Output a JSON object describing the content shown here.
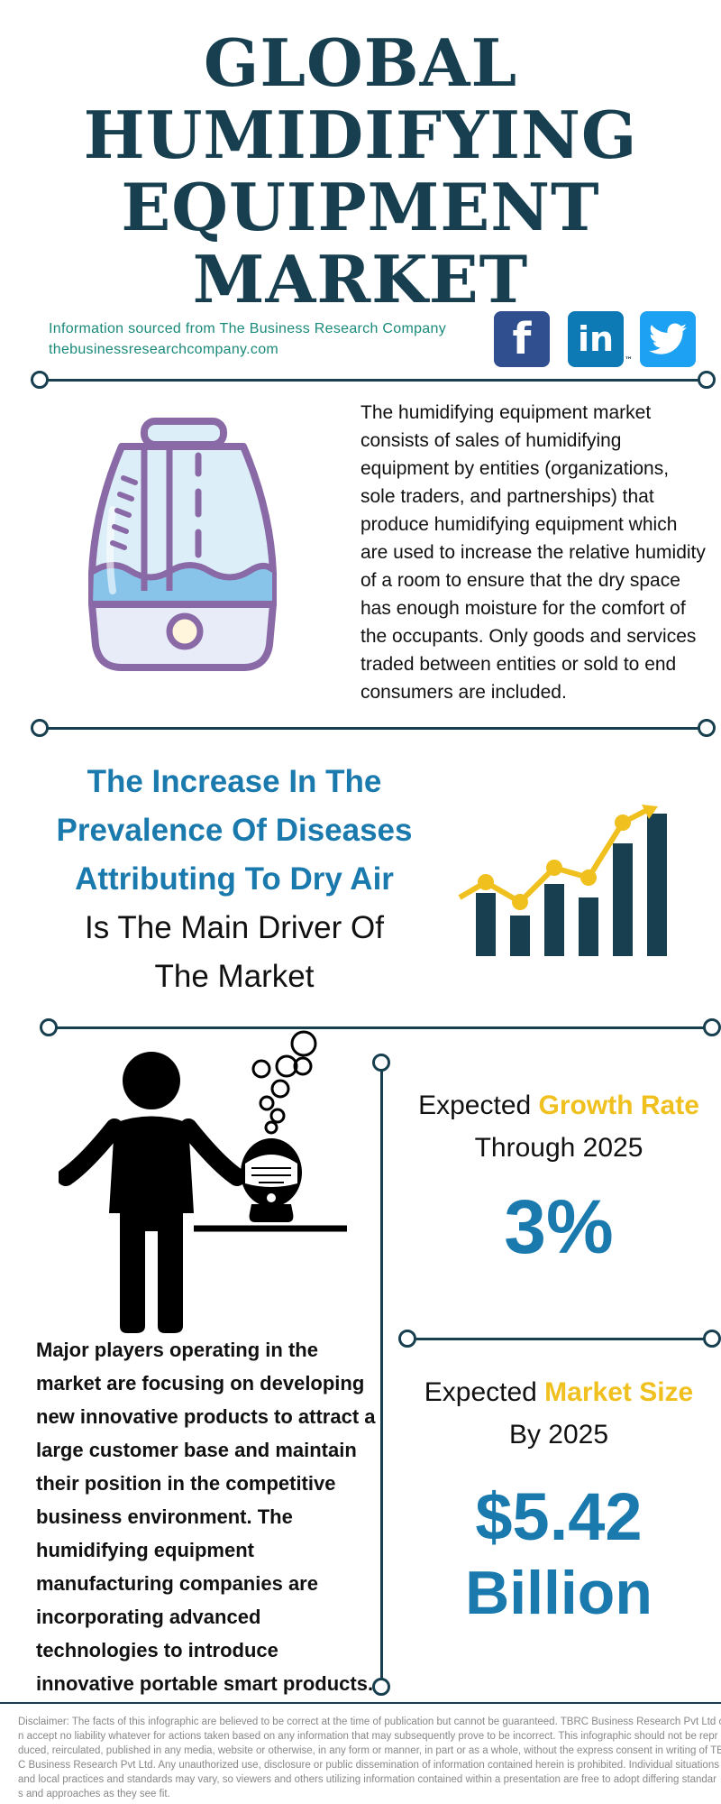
{
  "title": {
    "lines": [
      "GLOBAL",
      "HUMIDIFYING",
      "EQUIPMENT",
      "MARKET"
    ]
  },
  "source": {
    "line1": "Information sourced from The Business Research Company",
    "line2": "thebusinessresearchcompany.com"
  },
  "social": {
    "facebook": "f",
    "linkedin": "in",
    "linkedin_tm": "™"
  },
  "description": "The humidifying equipment market consists of sales of humidifying equipment by entities (organizations, sole traders, and partnerships) that produce humidifying equipment which are used to increase the relative humidity of a room to ensure that the dry space has enough moisture for the comfort of the occupants. Only goods and services traded between entities or sold to end consumers are included.",
  "driver": {
    "highlight_lines": [
      "The Increase In The",
      "Prevalence Of Diseases",
      "Attributing To Dry Air"
    ],
    "rest_lines": [
      "Is The Main Driver Of",
      "The Market"
    ]
  },
  "growth": {
    "label_prefix": "Expected ",
    "label_highlight": "Growth Rate",
    "label_suffix": "Through 2025",
    "value": "3%"
  },
  "market_size": {
    "label_prefix": "Expected ",
    "label_highlight": "Market Size",
    "label_suffix": "By 2025",
    "value_line1": "$5.42",
    "value_line2": "Billion"
  },
  "players": "Major players operating in the market are focusing on developing new innovative products to attract a large customer base and maintain their position in the competitive business environment. The humidifying equipment manufacturing companies are incorporating advanced technologies to introduce innovative portable smart products.",
  "disclaimer": [
    "Disclaimer: The facts of this infographic are believed to be correct at the time of publication but cannot be guaranteed. TBRC Business Research Pvt Ltd c",
    "n accept no liability whatever for actions taken based on any information that may subsequently prove to be incorrect. This infographic should not be repr",
    "duced, reirculated, published in any media, website or otherwise, in any form or manner, in part or as a whole, without the express consent in writing of TB",
    "C Business Research Pvt Ltd. Any unauthorized use, disclosure or public dissemination of information contained herein is prohibited. Individual situations",
    "and local practices and standards may vary, so viewers and others utilizing information contained within a presentation are free to adopt differing standar",
    "s and approaches as they see fit."
  ],
  "colors": {
    "navy": "#173f4f",
    "blue": "#1a7aad",
    "gold": "#f0c01f",
    "teal": "#1a8a7a"
  }
}
